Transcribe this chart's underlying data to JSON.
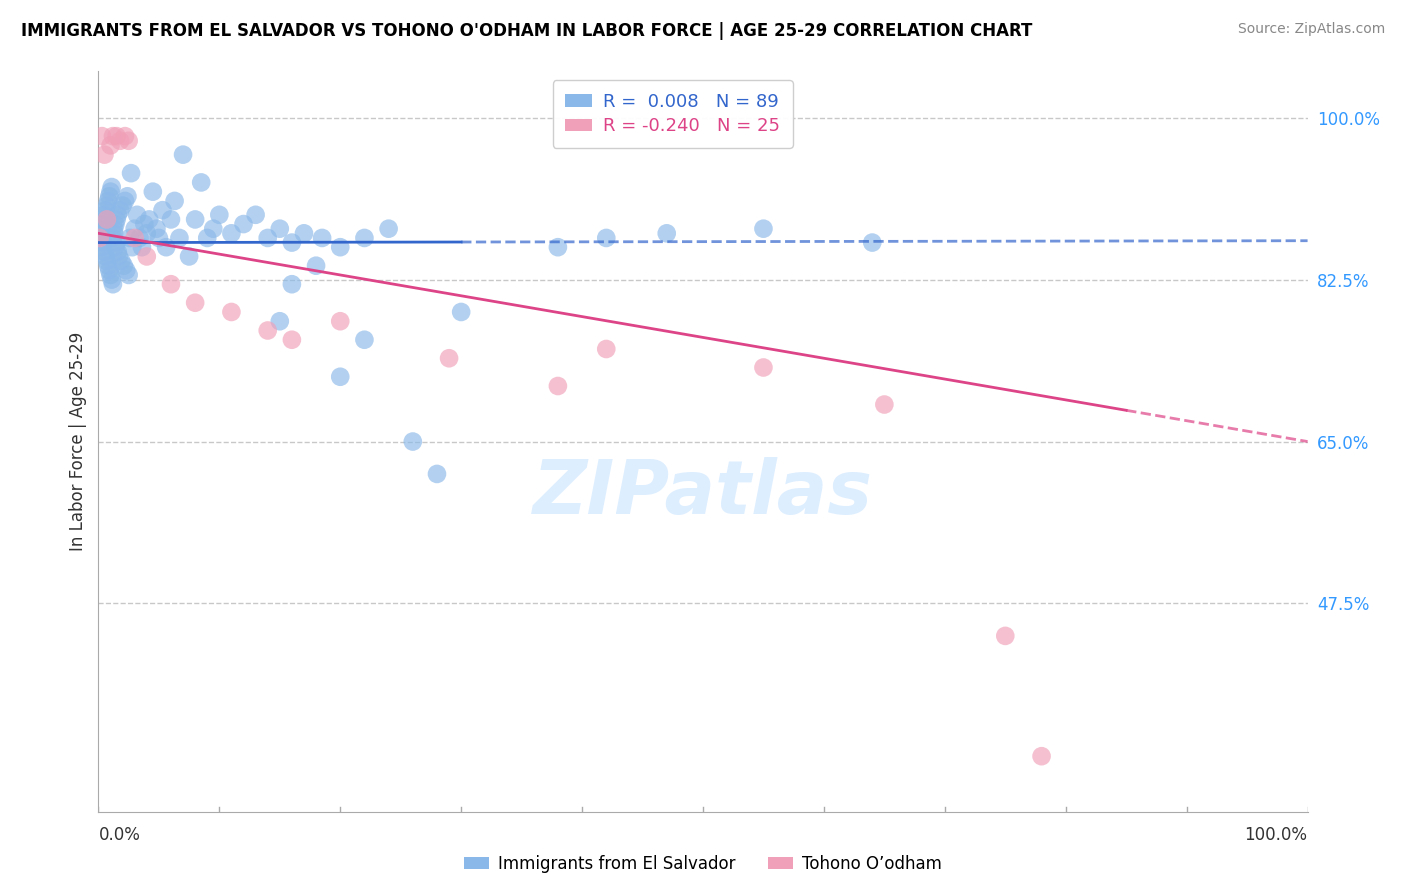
{
  "title": "IMMIGRANTS FROM EL SALVADOR VS TOHONO O'ODHAM IN LABOR FORCE | AGE 25-29 CORRELATION CHART",
  "source": "Source: ZipAtlas.com",
  "ylabel": "In Labor Force | Age 25-29",
  "xlim": [
    0.0,
    1.0
  ],
  "ylim": [
    0.25,
    1.05
  ],
  "blue_R": 0.008,
  "blue_N": 89,
  "pink_R": -0.24,
  "pink_N": 25,
  "blue_color": "#8ab8e8",
  "pink_color": "#f0a0b8",
  "blue_line_color": "#3366cc",
  "pink_line_color": "#dd4488",
  "legend_blue_label": "Immigrants from El Salvador",
  "legend_pink_label": "Tohono O’odham",
  "ytick_vals": [
    0.475,
    0.65,
    0.825,
    1.0
  ],
  "ytick_labels": [
    "47.5%",
    "65.0%",
    "82.5%",
    "100.0%"
  ],
  "blue_line_x0": 0.0,
  "blue_line_x_solid_end": 0.3,
  "blue_line_x1": 1.0,
  "blue_line_y0": 0.865,
  "blue_line_y1": 0.867,
  "pink_line_x0": 0.0,
  "pink_line_x_solid_end": 0.85,
  "pink_line_x1": 1.0,
  "pink_line_y0": 0.875,
  "pink_line_y1": 0.65,
  "blue_scatter_x": [
    0.001,
    0.002,
    0.002,
    0.003,
    0.003,
    0.004,
    0.004,
    0.005,
    0.005,
    0.006,
    0.006,
    0.007,
    0.007,
    0.008,
    0.008,
    0.009,
    0.009,
    0.01,
    0.01,
    0.011,
    0.011,
    0.012,
    0.012,
    0.013,
    0.013,
    0.014,
    0.014,
    0.015,
    0.015,
    0.016,
    0.016,
    0.017,
    0.018,
    0.019,
    0.02,
    0.021,
    0.022,
    0.023,
    0.024,
    0.025,
    0.026,
    0.027,
    0.028,
    0.03,
    0.032,
    0.034,
    0.036,
    0.038,
    0.04,
    0.042,
    0.045,
    0.048,
    0.05,
    0.053,
    0.056,
    0.06,
    0.063,
    0.067,
    0.07,
    0.075,
    0.08,
    0.085,
    0.09,
    0.095,
    0.1,
    0.11,
    0.12,
    0.13,
    0.14,
    0.15,
    0.16,
    0.17,
    0.185,
    0.2,
    0.22,
    0.24,
    0.26,
    0.28,
    0.3,
    0.15,
    0.16,
    0.18,
    0.2,
    0.22,
    0.38,
    0.42,
    0.47,
    0.55,
    0.64
  ],
  "blue_scatter_y": [
    0.87,
    0.875,
    0.88,
    0.86,
    0.885,
    0.865,
    0.89,
    0.855,
    0.895,
    0.85,
    0.9,
    0.845,
    0.905,
    0.84,
    0.91,
    0.835,
    0.915,
    0.83,
    0.92,
    0.825,
    0.925,
    0.82,
    0.87,
    0.875,
    0.88,
    0.86,
    0.885,
    0.865,
    0.89,
    0.855,
    0.895,
    0.85,
    0.9,
    0.845,
    0.905,
    0.84,
    0.91,
    0.835,
    0.915,
    0.83,
    0.87,
    0.94,
    0.86,
    0.88,
    0.895,
    0.87,
    0.86,
    0.885,
    0.875,
    0.89,
    0.92,
    0.88,
    0.87,
    0.9,
    0.86,
    0.89,
    0.91,
    0.87,
    0.96,
    0.85,
    0.89,
    0.93,
    0.87,
    0.88,
    0.895,
    0.875,
    0.885,
    0.895,
    0.87,
    0.88,
    0.865,
    0.875,
    0.87,
    0.86,
    0.87,
    0.88,
    0.65,
    0.615,
    0.79,
    0.78,
    0.82,
    0.84,
    0.72,
    0.76,
    0.86,
    0.87,
    0.875,
    0.88,
    0.865
  ],
  "pink_scatter_x": [
    0.001,
    0.003,
    0.005,
    0.007,
    0.01,
    0.012,
    0.015,
    0.018,
    0.022,
    0.025,
    0.03,
    0.04,
    0.06,
    0.08,
    0.11,
    0.14,
    0.16,
    0.2,
    0.29,
    0.38,
    0.42,
    0.55,
    0.65,
    0.75,
    0.78
  ],
  "pink_scatter_y": [
    0.87,
    0.98,
    0.96,
    0.89,
    0.97,
    0.98,
    0.98,
    0.975,
    0.98,
    0.975,
    0.87,
    0.85,
    0.82,
    0.8,
    0.79,
    0.77,
    0.76,
    0.78,
    0.74,
    0.71,
    0.75,
    0.73,
    0.69,
    0.44,
    0.31
  ]
}
